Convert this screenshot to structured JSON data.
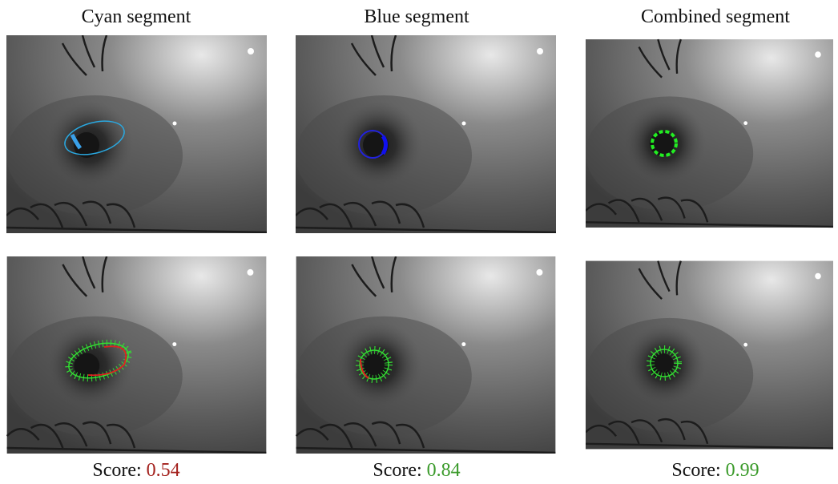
{
  "columns": [
    {
      "title": "Cyan segment",
      "score_label": "Score:",
      "score": 0.54,
      "score_color": "#a3201c"
    },
    {
      "title": "Blue segment",
      "score_label": "Score:",
      "score": 0.84,
      "score_color": "#3a9a2a"
    },
    {
      "title": "Combined segment",
      "score_label": "Score:",
      "score": 0.99,
      "score_color": "#3a9a2a"
    }
  ]
}
